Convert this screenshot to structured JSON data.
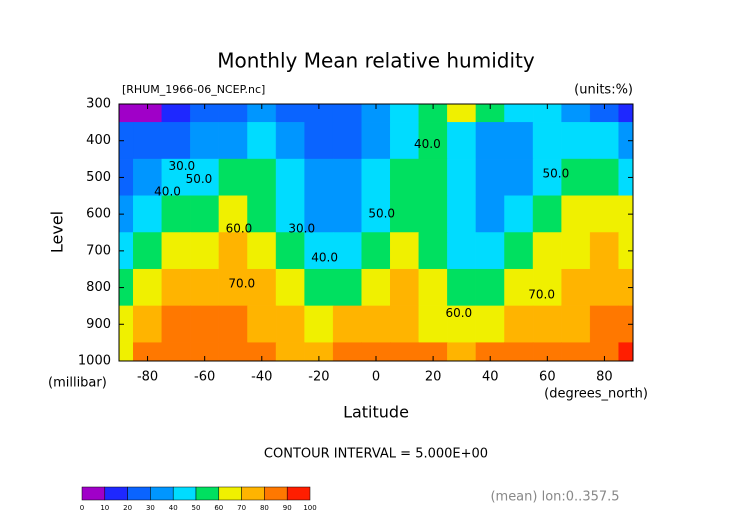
{
  "chart_data": {
    "type": "contour",
    "title": "Monthly Mean relative humidity",
    "subtitle": "[RHUM_1966-06_NCEP.nc]",
    "units_label": "(units:%)",
    "y_label": "Level",
    "y_units": "(millibar)",
    "x_label": "Latitude",
    "x_units": "(degrees_north)",
    "contour_interval": "CONTOUR INTERVAL = 5.000E+00",
    "footnote": "(mean) lon:0..357.5",
    "x": [
      -90,
      -80,
      -70,
      -60,
      -50,
      -40,
      -30,
      -20,
      -10,
      0,
      10,
      20,
      30,
      40,
      50,
      60,
      70,
      80,
      90
    ],
    "y": [
      300,
      400,
      500,
      600,
      700,
      800,
      900,
      1000
    ],
    "z": [
      [
        5,
        5,
        15,
        20,
        25,
        30,
        25,
        20,
        22,
        30,
        40,
        50,
        60,
        55,
        45,
        40,
        30,
        20,
        15
      ],
      [
        20,
        22,
        25,
        30,
        35,
        40,
        35,
        25,
        25,
        35,
        45,
        50,
        42,
        35,
        35,
        40,
        45,
        40,
        30
      ],
      [
        25,
        30,
        40,
        45,
        50,
        50,
        40,
        30,
        30,
        40,
        55,
        55,
        40,
        35,
        35,
        45,
        55,
        50,
        45
      ],
      [
        30,
        40,
        50,
        55,
        60,
        55,
        45,
        30,
        35,
        45,
        58,
        55,
        40,
        35,
        40,
        55,
        60,
        65,
        60
      ],
      [
        40,
        50,
        60,
        65,
        70,
        65,
        55,
        40,
        45,
        55,
        68,
        55,
        42,
        40,
        50,
        62,
        68,
        70,
        68
      ],
      [
        50,
        60,
        70,
        75,
        75,
        70,
        60,
        55,
        58,
        65,
        70,
        60,
        50,
        52,
        60,
        68,
        72,
        75,
        75
      ],
      [
        60,
        70,
        80,
        85,
        85,
        78,
        70,
        68,
        70,
        72,
        72,
        68,
        65,
        68,
        70,
        75,
        78,
        80,
        82
      ],
      [
        60,
        80,
        85,
        88,
        85,
        80,
        78,
        78,
        80,
        82,
        82,
        80,
        78,
        80,
        80,
        82,
        85,
        88,
        92
      ]
    ],
    "xlim": [
      -90,
      90
    ],
    "xticks": [
      -80,
      -60,
      -40,
      -20,
      0,
      20,
      40,
      60,
      80
    ],
    "ylim": [
      1000,
      300
    ],
    "yticks": [
      300,
      400,
      500,
      600,
      700,
      800,
      900,
      1000
    ],
    "levels": [
      0,
      10,
      20,
      30,
      40,
      50,
      60,
      70,
      80,
      90,
      100
    ],
    "colors": [
      "#a000c8",
      "#1e28ff",
      "#0a64ff",
      "#0096ff",
      "#00dcff",
      "#00e060",
      "#f0f000",
      "#ffb400",
      "#ff7800",
      "#ff1e00"
    ],
    "annotations": [
      {
        "text": "30.0",
        "x": -68,
        "y": 470
      },
      {
        "text": "40.0",
        "x": -73,
        "y": 540
      },
      {
        "text": "50.0",
        "x": -62,
        "y": 505
      },
      {
        "text": "60.0",
        "x": -48,
        "y": 640
      },
      {
        "text": "70.0",
        "x": -47,
        "y": 790
      },
      {
        "text": "30.0",
        "x": -26,
        "y": 640
      },
      {
        "text": "40.0",
        "x": -18,
        "y": 720
      },
      {
        "text": "50.0",
        "x": 2,
        "y": 600
      },
      {
        "text": "40.0",
        "x": 18,
        "y": 410
      },
      {
        "text": "60.0",
        "x": 29,
        "y": 870
      },
      {
        "text": "70.0",
        "x": 58,
        "y": 820
      },
      {
        "text": "50.0",
        "x": 63,
        "y": 490
      }
    ]
  }
}
